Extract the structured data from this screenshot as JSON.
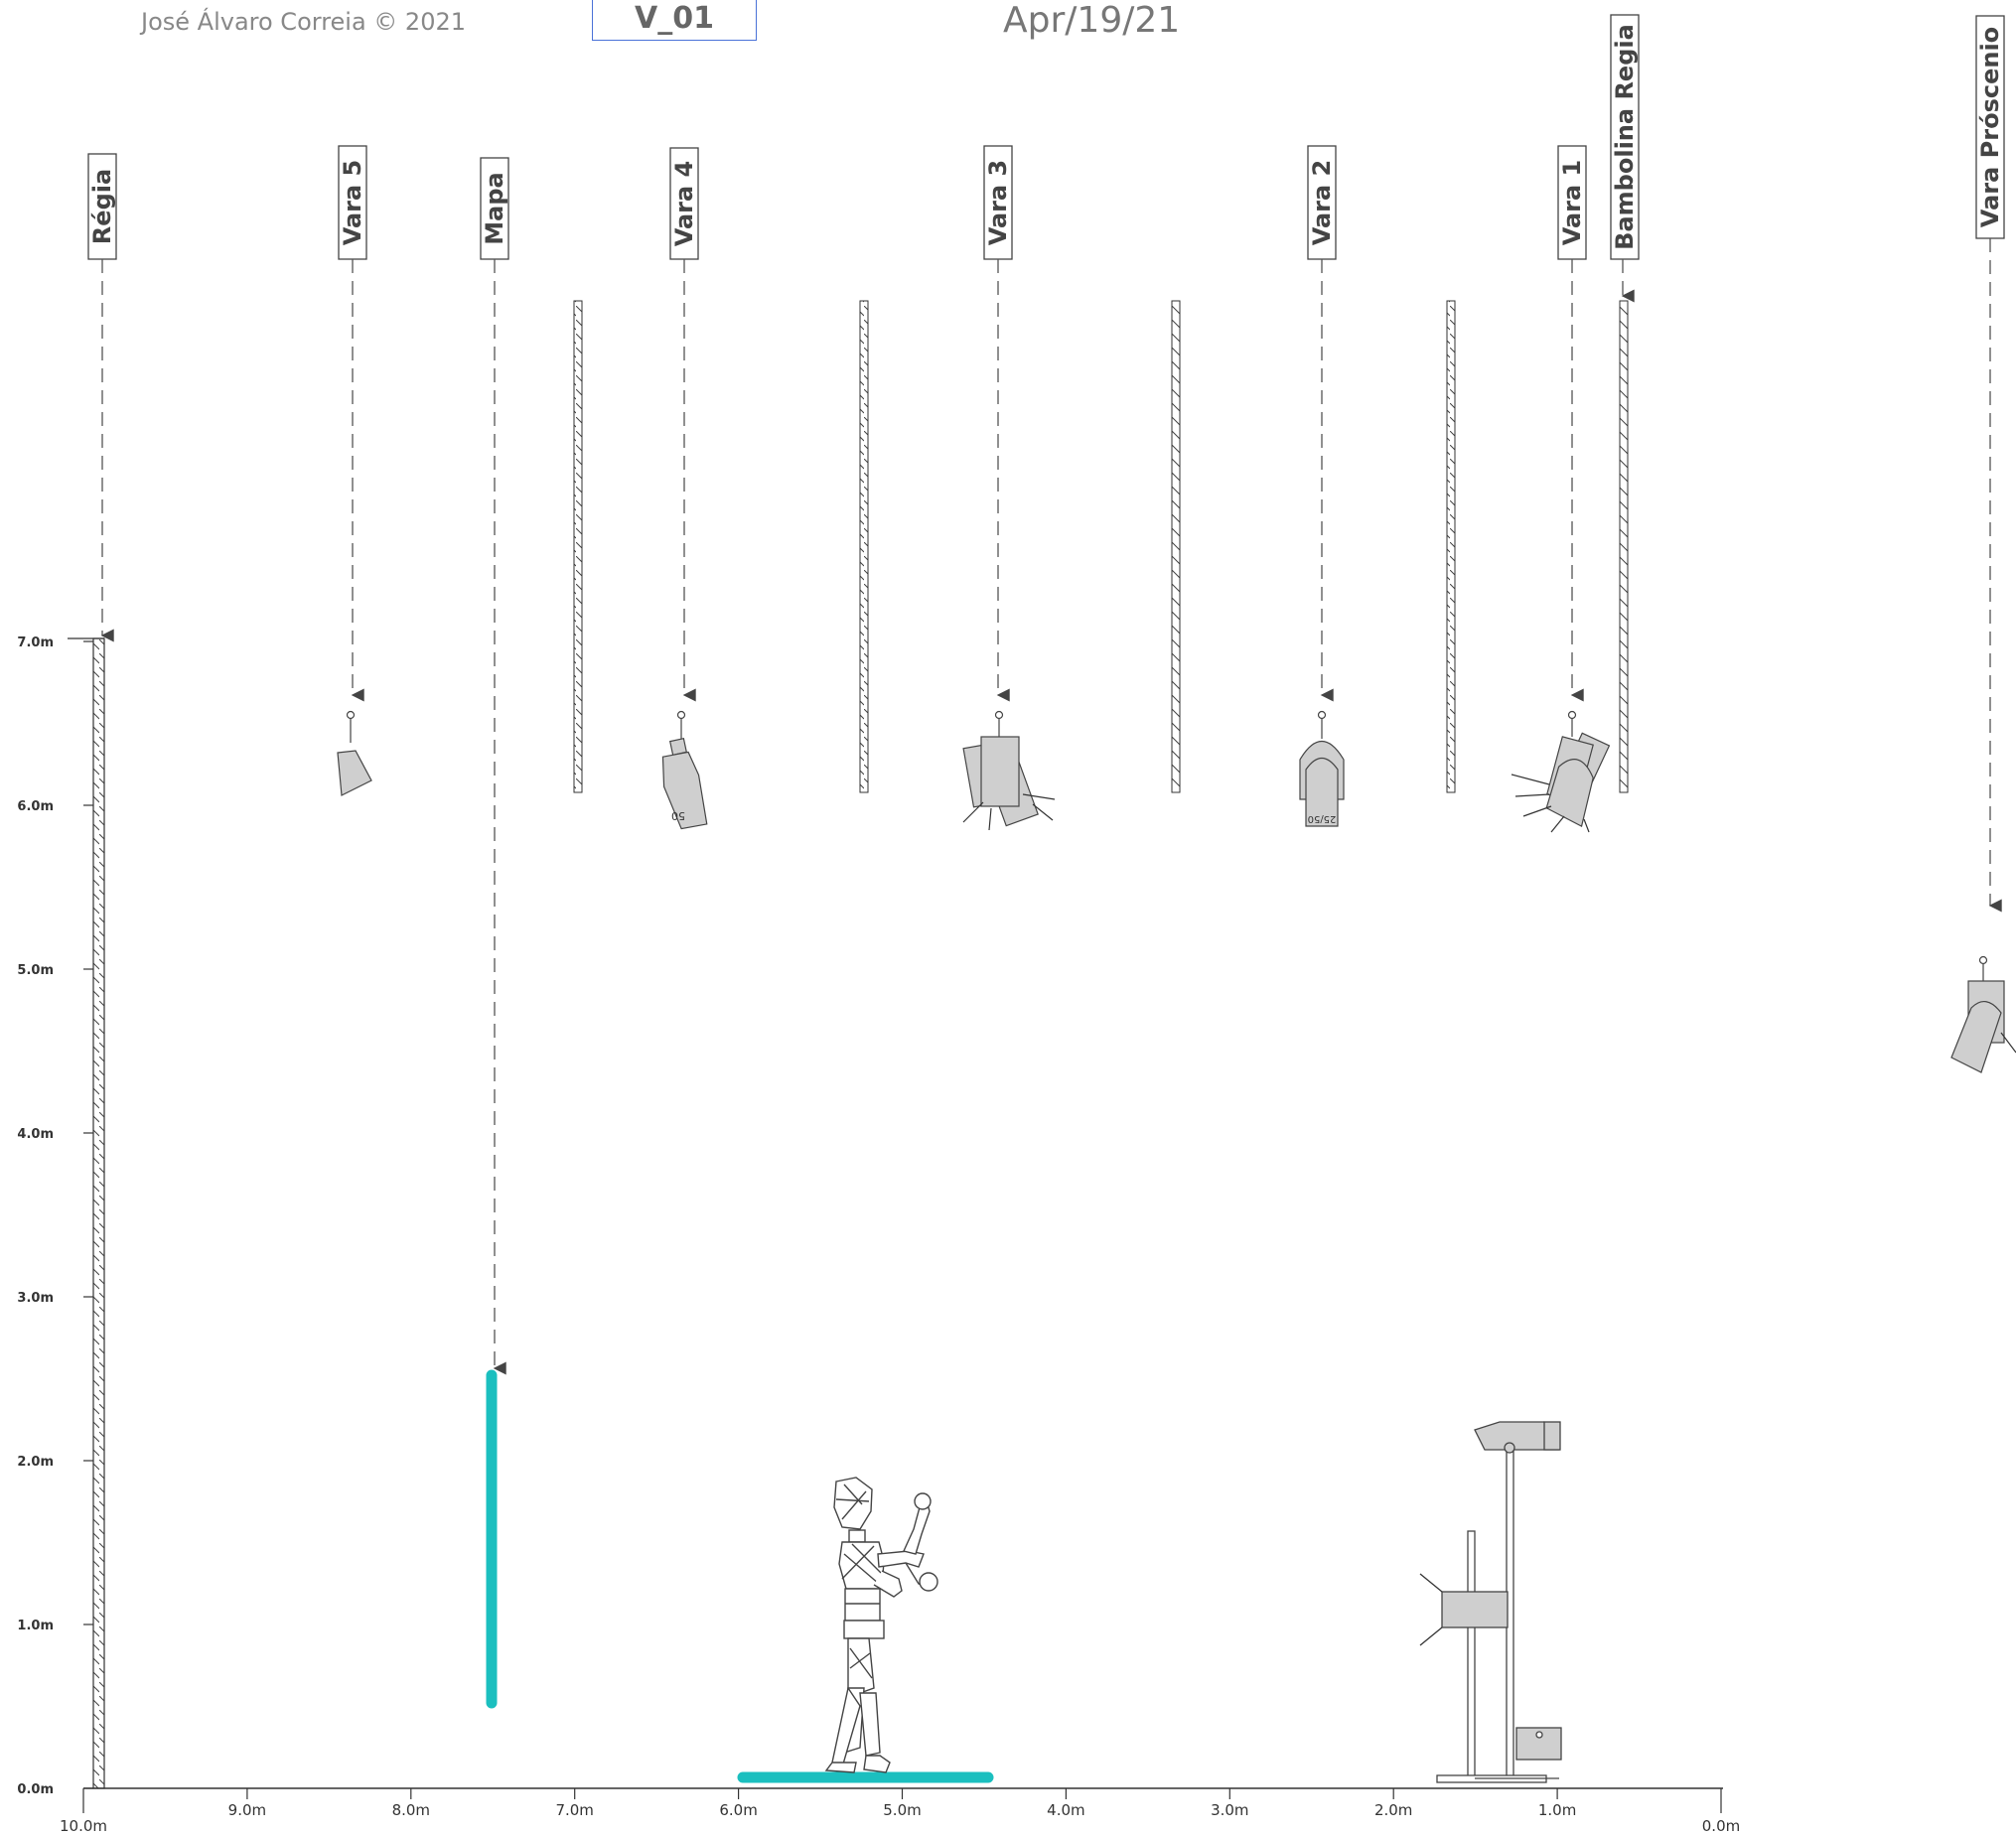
{
  "header": {
    "author": "José Álvaro Correia © 2021",
    "version": "V_01",
    "date": "Apr/19/21"
  },
  "bars": [
    {
      "id": "regia",
      "label": "Régia"
    },
    {
      "id": "vara5",
      "label": "Vara 5"
    },
    {
      "id": "mapa",
      "label": "Mapa"
    },
    {
      "id": "vara4",
      "label": "Vara 4"
    },
    {
      "id": "vara3",
      "label": "Vara 3"
    },
    {
      "id": "vara2",
      "label": "Vara 2"
    },
    {
      "id": "vara1",
      "label": "Vara 1"
    },
    {
      "id": "bambolina",
      "label": "Bambolina Regia"
    },
    {
      "id": "proscenio",
      "label": "Vara Próscenio"
    }
  ],
  "x_axis": {
    "ticks": [
      "10.0m",
      "9.0m",
      "8.0m",
      "7.0m",
      "6.0m",
      "5.0m",
      "4.0m",
      "3.0m",
      "2.0m",
      "1.0m",
      "0.0m"
    ]
  },
  "y_axis": {
    "ticks": [
      "0.0m",
      "1.0m",
      "2.0m",
      "3.0m",
      "4.0m",
      "5.0m",
      "6.0m",
      "7.0m"
    ]
  },
  "colors": {
    "accent": "#1bbfbf",
    "fixture_fill": "#cfcfcf",
    "line": "#555555"
  }
}
